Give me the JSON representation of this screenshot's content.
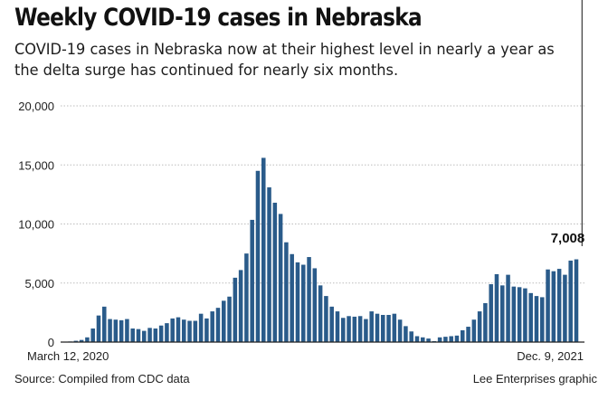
{
  "header": {
    "title": "Weekly COVID-19 cases in Nebraska",
    "subtitle": "COVID-19 cases in Nebraska now at their highest level in nearly a year as the delta surge has continued for nearly six months."
  },
  "footer": {
    "source": "Source: Compiled from CDC data",
    "credit": "Lee Enterprises graphic"
  },
  "chart_data": {
    "type": "bar",
    "title": "Weekly COVID-19 cases in Nebraska",
    "xlabel": "",
    "ylabel": "",
    "ylim": [
      0,
      20000
    ],
    "yticks": [
      0,
      5000,
      10000,
      15000,
      20000
    ],
    "ytick_labels": [
      "0",
      "5,000",
      "10,000",
      "15,000",
      "20,000"
    ],
    "grid": true,
    "x_start_label": "March 12, 2020",
    "x_end_label": "Dec. 9, 2021",
    "annotation": {
      "index": 91,
      "label": "7,008"
    },
    "bar_color": "#2a5b8a",
    "values": [
      30,
      50,
      110,
      180,
      400,
      1150,
      2250,
      3000,
      1950,
      1900,
      1850,
      1950,
      1150,
      1100,
      950,
      1200,
      1150,
      1400,
      1600,
      2000,
      2100,
      1900,
      1800,
      1800,
      2400,
      2000,
      2600,
      2900,
      3500,
      3850,
      5450,
      6100,
      7500,
      10350,
      14500,
      15600,
      13100,
      11800,
      10850,
      8450,
      7450,
      6750,
      6550,
      7200,
      6250,
      4800,
      3900,
      3000,
      2600,
      2050,
      2200,
      2150,
      2200,
      1950,
      2600,
      2400,
      2300,
      2300,
      2400,
      1900,
      1350,
      900,
      500,
      400,
      300,
      80,
      400,
      450,
      500,
      550,
      1000,
      1300,
      1900,
      2600,
      3300,
      4900,
      5750,
      4800,
      5700,
      4700,
      4650,
      4550,
      4150,
      3900,
      3800,
      6150,
      6000,
      6200,
      5700,
      6900,
      7008
    ]
  }
}
